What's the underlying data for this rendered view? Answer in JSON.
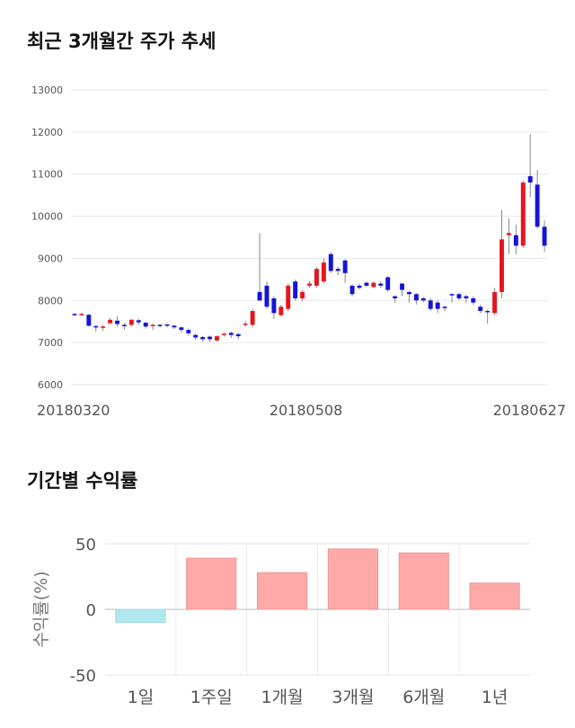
{
  "charts_text": {
    "title_price": "최근 3개월간 주가 추세",
    "title_returns": "기간별 수익률"
  },
  "chart_data": [
    {
      "type": "candlestick",
      "title": "최근 3개월간 주가 추세",
      "ylim": [
        6000,
        13000
      ],
      "y_ticks": [
        "13000",
        "12000",
        "11000",
        "10000",
        "9000",
        "8000",
        "7000",
        "6000"
      ],
      "x_tick_labels": [
        "20180320",
        "20180508",
        "20180627"
      ],
      "grid": true,
      "colors": {
        "up": "#e8141b",
        "down": "#1414d9",
        "wick": "#888888"
      },
      "candles": [
        [
          7680,
          7660,
          7700,
          7640
        ],
        [
          7660,
          7680,
          7710,
          7630
        ],
        [
          7660,
          7400,
          7680,
          7380
        ],
        [
          7390,
          7360,
          7420,
          7260
        ],
        [
          7360,
          7380,
          7420,
          7280
        ],
        [
          7460,
          7540,
          7580,
          7420
        ],
        [
          7520,
          7440,
          7620,
          7380
        ],
        [
          7420,
          7400,
          7460,
          7310
        ],
        [
          7420,
          7540,
          7560,
          7380
        ],
        [
          7530,
          7480,
          7570,
          7420
        ],
        [
          7470,
          7380,
          7500,
          7330
        ],
        [
          7390,
          7420,
          7450,
          7300
        ],
        [
          7420,
          7410,
          7440,
          7360
        ],
        [
          7430,
          7410,
          7450,
          7360
        ],
        [
          7400,
          7360,
          7420,
          7320
        ],
        [
          7360,
          7300,
          7380,
          7240
        ],
        [
          7300,
          7220,
          7330,
          7160
        ],
        [
          7180,
          7120,
          7210,
          7060
        ],
        [
          7130,
          7080,
          7160,
          7020
        ],
        [
          7140,
          7080,
          7170,
          7020
        ],
        [
          7050,
          7150,
          7170,
          7030
        ],
        [
          7200,
          7210,
          7240,
          7140
        ],
        [
          7230,
          7180,
          7260,
          7110
        ],
        [
          7200,
          7150,
          7230,
          7080
        ],
        [
          7420,
          7450,
          7520,
          7380
        ],
        [
          7420,
          7750,
          7800,
          7360
        ],
        [
          8200,
          8000,
          9600,
          7980
        ],
        [
          8350,
          7850,
          8450,
          7800
        ],
        [
          8050,
          7700,
          8100,
          7560
        ],
        [
          7650,
          7850,
          7900,
          7620
        ],
        [
          7800,
          8350,
          8400,
          7750
        ],
        [
          8450,
          8050,
          8500,
          8000
        ],
        [
          8050,
          8200,
          8250,
          7980
        ],
        [
          8350,
          8400,
          8460,
          8300
        ],
        [
          8350,
          8750,
          8800,
          8300
        ],
        [
          8450,
          8900,
          9000,
          8400
        ],
        [
          9100,
          8700,
          9150,
          8650
        ],
        [
          8750,
          8700,
          8800,
          8600
        ],
        [
          8950,
          8650,
          8980,
          8420
        ],
        [
          8350,
          8150,
          8380,
          8100
        ],
        [
          8350,
          8300,
          8400,
          8260
        ],
        [
          8420,
          8350,
          8450,
          8320
        ],
        [
          8320,
          8420,
          8450,
          8300
        ],
        [
          8400,
          8350,
          8450,
          8300
        ],
        [
          8550,
          8250,
          8580,
          8200
        ],
        [
          8100,
          8050,
          8120,
          7950
        ],
        [
          8400,
          8250,
          8420,
          8100
        ],
        [
          8200,
          8150,
          8230,
          7950
        ],
        [
          8150,
          8000,
          8180,
          7900
        ],
        [
          8050,
          8000,
          8080,
          7950
        ],
        [
          8000,
          7800,
          8050,
          7750
        ],
        [
          7950,
          7800,
          8000,
          7700
        ],
        [
          7850,
          7820,
          7880,
          7750
        ],
        [
          8150,
          8120,
          8180,
          7950
        ],
        [
          8150,
          8050,
          8180,
          8000
        ],
        [
          8100,
          8050,
          8130,
          7950
        ],
        [
          8050,
          7950,
          8100,
          7900
        ],
        [
          7850,
          7750,
          7900,
          7700
        ],
        [
          7750,
          7720,
          7780,
          7450
        ],
        [
          7700,
          8200,
          8300,
          7650
        ],
        [
          8200,
          9450,
          10150,
          8050
        ],
        [
          9550,
          9600,
          9950,
          9100
        ],
        [
          9550,
          9300,
          9800,
          9100
        ],
        [
          9300,
          10800,
          10850,
          9250
        ],
        [
          10950,
          10800,
          11950,
          10450
        ],
        [
          10750,
          9750,
          11100,
          9700
        ],
        [
          9750,
          9300,
          9900,
          9150
        ]
      ]
    },
    {
      "type": "bar",
      "title": "기간별 수익률",
      "ylabel": "수익률(%)",
      "ylim": [
        -50,
        50
      ],
      "y_ticks": [
        "50",
        "0",
        "-50"
      ],
      "categories": [
        "1일",
        "1주일",
        "1개월",
        "3개월",
        "6개월",
        "1년"
      ],
      "values": [
        -10,
        39,
        28,
        46,
        43,
        20
      ],
      "colors": {
        "positive": "#ffa8a8",
        "negative": "#b0e8f0"
      }
    }
  ]
}
